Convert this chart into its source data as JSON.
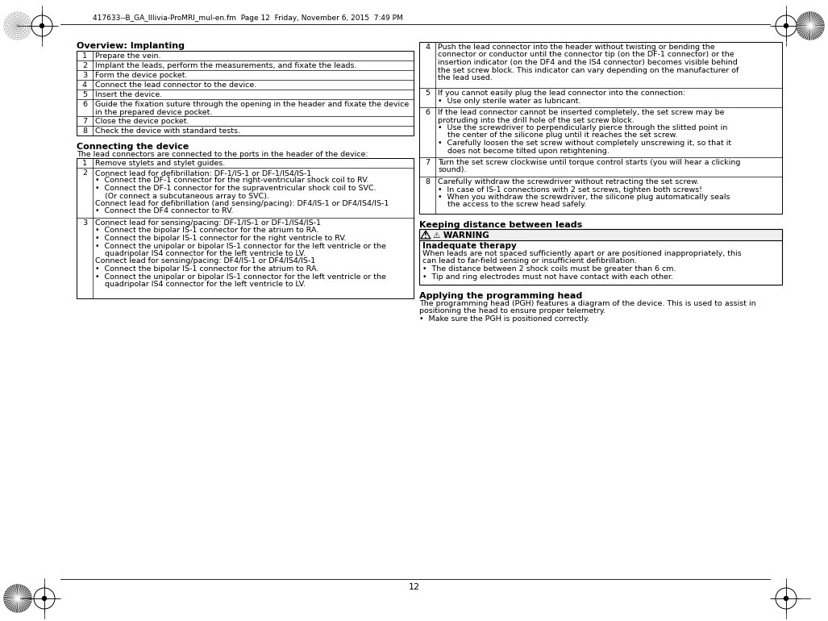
{
  "page_header": "417633--B_GA_IIlivia-ProMRI_mul-en.fm  Page 12  Friday, November 6, 2015  7:49 PM",
  "page_number": "12",
  "bg_color": "#ffffff",
  "section1_title": "Overview: Implanting",
  "section1_rows": [
    [
      "1",
      "Prepare the vein."
    ],
    [
      "2",
      "Implant the leads, perform the measurements, and fixate the leads."
    ],
    [
      "3",
      "Form the device pocket."
    ],
    [
      "4",
      "Connect the lead connector to the device."
    ],
    [
      "5",
      "Insert the device."
    ],
    [
      "6",
      "Guide the fixation suture through the opening in the header and fixate the device\nin the prepared device pocket."
    ],
    [
      "7",
      "Close the device pocket."
    ],
    [
      "8",
      "Check the device with standard tests."
    ]
  ],
  "section2_title": "Connecting the device",
  "section2_intro": "The lead connectors are connected to the ports in the header of the device:",
  "section2_rows": [
    {
      "num": "1",
      "lines": [
        "Remove stylets and stylet guides."
      ]
    },
    {
      "num": "2",
      "lines": [
        "Connect lead for defibrillation: DF-1/IS-1 or DF-1/IS4/IS-1",
        "•  Connect the DF-1 connector for the right-ventricular shock coil to RV.",
        "•  Connect the DF-1 connector for the supraventricular shock coil to SVC.",
        "    (Or connect a subcutaneous array to SVC).",
        "Connect lead for defibrillation (and sensing/pacing): DF4/IS-1 or DF4/IS4/IS-1",
        "•  Connect the DF4 connector to RV."
      ]
    },
    {
      "num": "3",
      "lines": [
        "Connect lead for sensing/pacing: DF-1/IS-1 or DF-1/IS4/IS-1",
        "•  Connect the bipolar IS-1 connector for the atrium to RA.",
        "•  Connect the bipolar IS-1 connector for the right ventricle to RV.",
        "•  Connect the unipolar or bipolar IS-1 connector for the left ventricle or the",
        "    quadripolar IS4 connector for the left ventricle to LV.",
        "Connect lead for sensing/pacing: DF4/IS-1 or DF4/IS4/IS-1",
        "•  Connect the bipolar IS-1 connector for the atrium to RA.",
        "•  Connect the unipolar or bipolar IS-1 connector for the left ventricle or the",
        "    quadripolar IS4 connector for the left ventricle to LV."
      ]
    }
  ],
  "section3_rows": [
    {
      "num": "4",
      "lines": [
        "Push the lead connector into the header without twisting or bending the",
        "connector or conductor until the connector tip (on the DF-1 connector) or the",
        "insertion indicator (on the DF4 and the IS4 connector) becomes visible behind",
        "the set screw block. This indicator can vary depending on the manufacturer of",
        "the lead used."
      ]
    },
    {
      "num": "5",
      "lines": [
        "If you cannot easily plug the lead connector into the connection:",
        "•  Use only sterile water as lubricant."
      ]
    },
    {
      "num": "6",
      "lines": [
        "If the lead connector cannot be inserted completely, the set screw may be",
        "protruding into the drill hole of the set screw block.",
        "•  Use the screwdriver to perpendicularly pierce through the slitted point in",
        "    the center of the silicone plug until it reaches the set screw.",
        "•  Carefully loosen the set screw without completely unscrewing it, so that it",
        "    does not become tilted upon retightening."
      ]
    },
    {
      "num": "7",
      "lines": [
        "Turn the set screw clockwise until torque control starts (you will hear a clicking",
        "sound)."
      ]
    },
    {
      "num": "8",
      "lines": [
        "Carefully withdraw the screwdriver without retracting the set screw.",
        "•  In case of IS-1 connections with 2 set screws, tighten both screws!",
        "•  When you withdraw the screwdriver, the silicone plug automatically seals",
        "    the access to the screw head safely."
      ]
    }
  ],
  "section4_title": "Keeping distance between leads",
  "warning_title": "⚠ WARNING",
  "warning_subtitle": "Inadequate therapy",
  "warning_text": [
    "When leads are not spaced sufficiently apart or are positioned inappropriately, this",
    "can lead to far-field sensing or insufficient defibrillation.",
    "•  The distance between 2 shock coils must be greater than 6 cm.",
    "•  Tip and ring electrodes must not have contact with each other."
  ],
  "section5_title": "Applying the programming head",
  "section5_text": [
    "The programming head (PGH) features a diagram of the device. This is used to assist in",
    "positioning the head to ensure proper telemetry.",
    "•  Make sure the PGH is positioned correctly."
  ]
}
